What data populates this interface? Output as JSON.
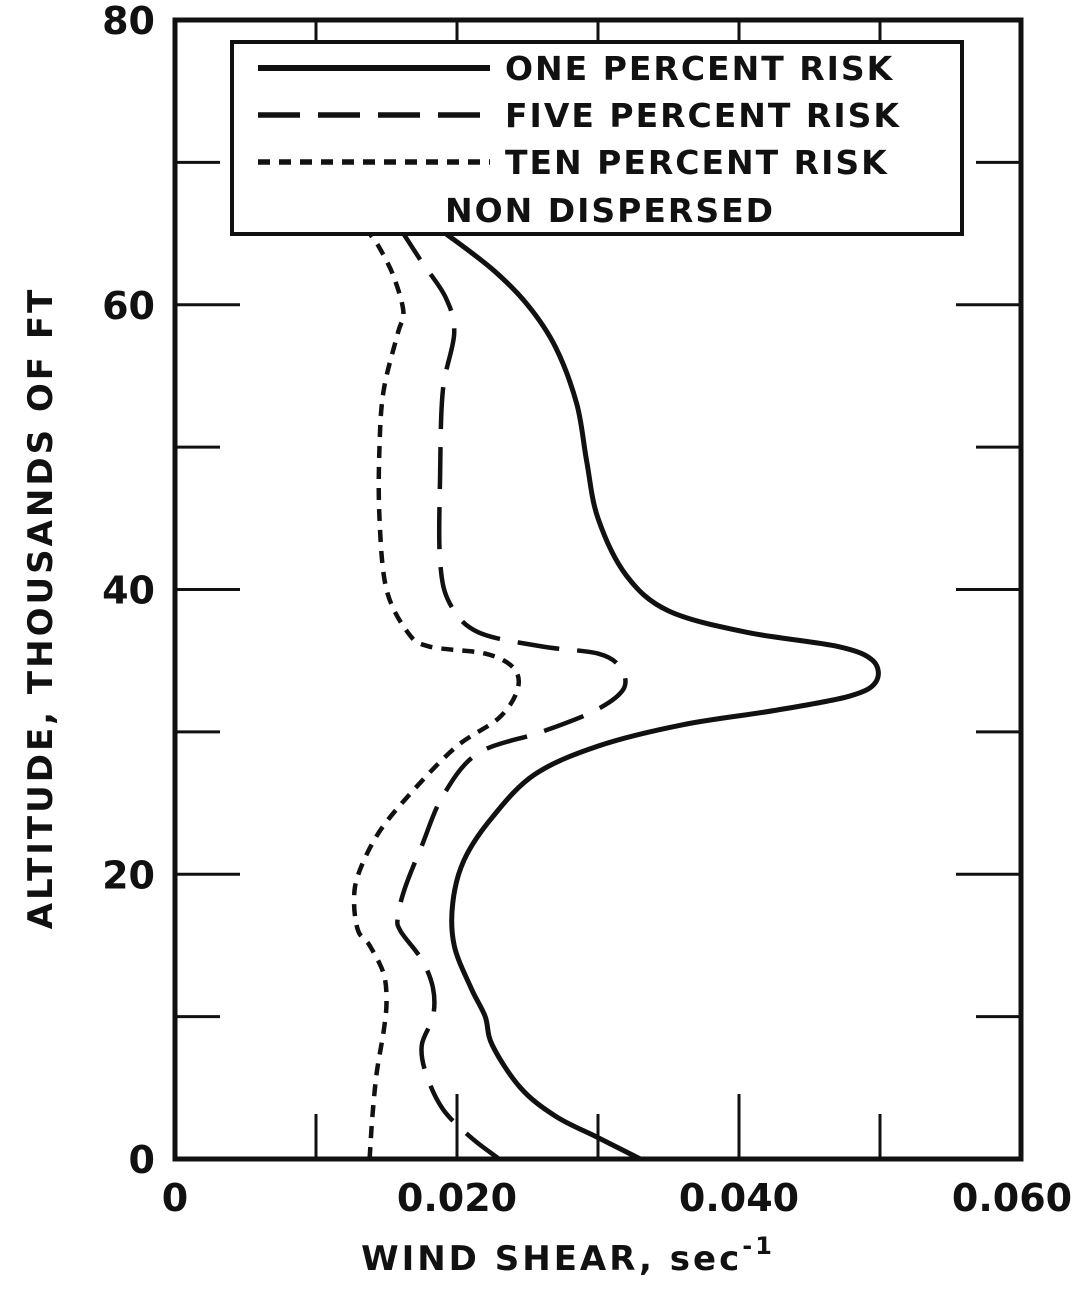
{
  "chart_data": {
    "type": "line",
    "title": "",
    "xlabel": "WIND SHEAR, sec",
    "xlabel_superscript": "-1",
    "ylabel": "ALTITUDE, THOUSANDS OF FT",
    "xlim": [
      0,
      0.06
    ],
    "ylim": [
      0,
      80
    ],
    "x_ticks": [
      "0",
      "0.020",
      "0.040",
      "0.060"
    ],
    "y_ticks": [
      "0",
      "20",
      "40",
      "60",
      "80"
    ],
    "grid": false,
    "legend_position": "top",
    "legend_note": "NON DISPERSED",
    "series": [
      {
        "name": "ONE PERCENT RISK",
        "style": "solid",
        "points": [
          [
            0.033,
            0
          ],
          [
            0.03,
            1.5
          ],
          [
            0.027,
            3
          ],
          [
            0.0245,
            5
          ],
          [
            0.0225,
            8
          ],
          [
            0.022,
            10
          ],
          [
            0.021,
            12
          ],
          [
            0.0198,
            15
          ],
          [
            0.0197,
            18
          ],
          [
            0.0205,
            21
          ],
          [
            0.0225,
            24
          ],
          [
            0.0255,
            27
          ],
          [
            0.03,
            29
          ],
          [
            0.036,
            30.5
          ],
          [
            0.0425,
            31.5
          ],
          [
            0.0478,
            32.5
          ],
          [
            0.0497,
            33.5
          ],
          [
            0.0495,
            35
          ],
          [
            0.047,
            36
          ],
          [
            0.0405,
            37
          ],
          [
            0.035,
            38.5
          ],
          [
            0.032,
            41
          ],
          [
            0.03,
            45
          ],
          [
            0.0292,
            49
          ],
          [
            0.0285,
            53
          ],
          [
            0.027,
            57
          ],
          [
            0.025,
            60
          ],
          [
            0.0225,
            62.5
          ],
          [
            0.0192,
            65
          ]
        ]
      },
      {
        "name": "FIVE PERCENT RISK",
        "style": "dashed",
        "points": [
          [
            0.023,
            0
          ],
          [
            0.021,
            1.5
          ],
          [
            0.019,
            3.5
          ],
          [
            0.0178,
            6
          ],
          [
            0.0175,
            8
          ],
          [
            0.0183,
            10
          ],
          [
            0.0183,
            12
          ],
          [
            0.0175,
            14
          ],
          [
            0.016,
            16
          ],
          [
            0.0158,
            17
          ],
          [
            0.0163,
            19
          ],
          [
            0.0175,
            22
          ],
          [
            0.019,
            25.5
          ],
          [
            0.0215,
            28.5
          ],
          [
            0.026,
            30
          ],
          [
            0.0298,
            31.5
          ],
          [
            0.0318,
            33
          ],
          [
            0.0316,
            34.5
          ],
          [
            0.03,
            35.5
          ],
          [
            0.026,
            36
          ],
          [
            0.0215,
            37
          ],
          [
            0.0195,
            39
          ],
          [
            0.0188,
            42
          ],
          [
            0.0188,
            48
          ],
          [
            0.019,
            54
          ],
          [
            0.0198,
            58
          ],
          [
            0.0192,
            60.5
          ],
          [
            0.0175,
            63
          ],
          [
            0.0162,
            65
          ]
        ]
      },
      {
        "name": "TEN PERCENT RISK",
        "style": "dotted",
        "points": [
          [
            0.0138,
            0
          ],
          [
            0.014,
            3
          ],
          [
            0.0143,
            6
          ],
          [
            0.0148,
            9
          ],
          [
            0.015,
            11
          ],
          [
            0.0148,
            13
          ],
          [
            0.0138,
            15
          ],
          [
            0.013,
            16
          ],
          [
            0.0127,
            18
          ],
          [
            0.013,
            20
          ],
          [
            0.0145,
            23
          ],
          [
            0.017,
            26
          ],
          [
            0.02,
            29
          ],
          [
            0.023,
            31
          ],
          [
            0.0243,
            33
          ],
          [
            0.024,
            34.5
          ],
          [
            0.022,
            35.5
          ],
          [
            0.018,
            36
          ],
          [
            0.0165,
            37
          ],
          [
            0.015,
            40
          ],
          [
            0.0145,
            45
          ],
          [
            0.0145,
            50
          ],
          [
            0.0148,
            54
          ],
          [
            0.0158,
            58
          ],
          [
            0.0162,
            59.5
          ],
          [
            0.0155,
            62
          ],
          [
            0.0145,
            64
          ],
          [
            0.0138,
            65
          ]
        ]
      }
    ]
  }
}
